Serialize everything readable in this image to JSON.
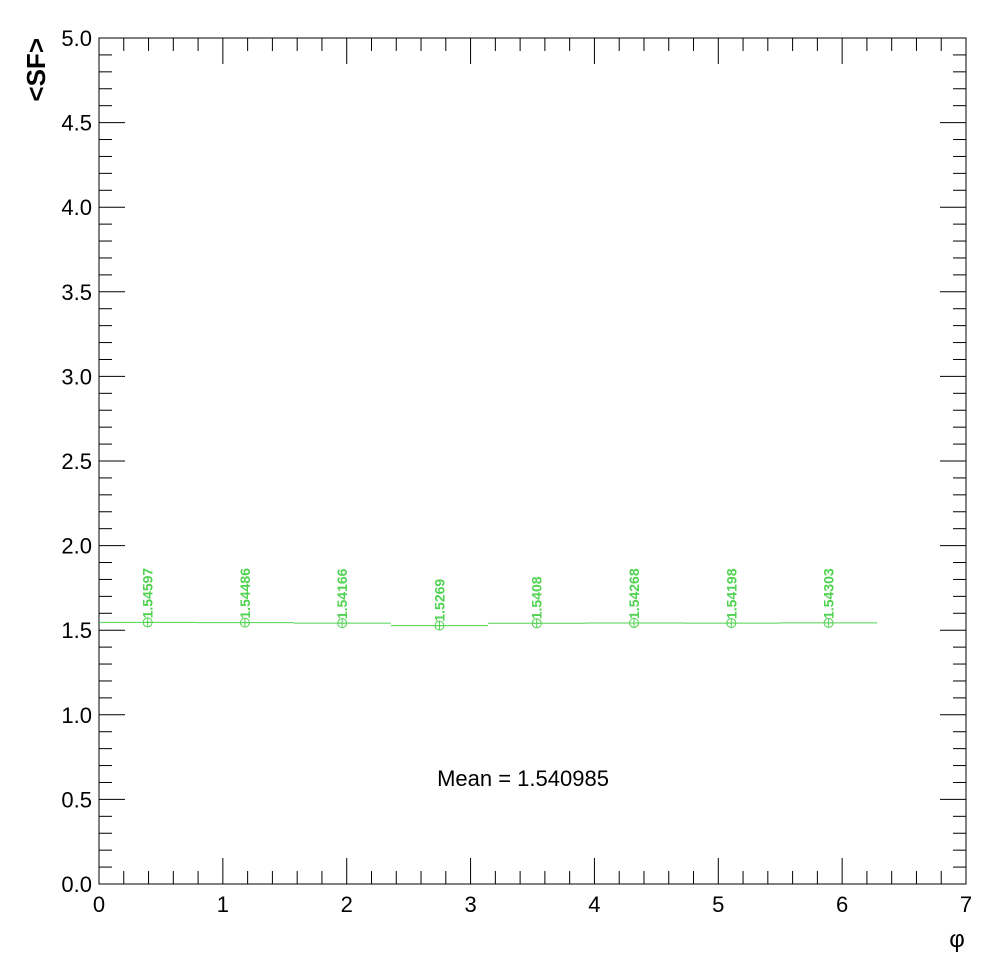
{
  "chart_data": {
    "type": "scatter",
    "title": "",
    "xlabel": "φ",
    "ylabel": "<SF>",
    "xlim": [
      0,
      7
    ],
    "ylim": [
      0,
      5
    ],
    "x_ticks": [
      "0",
      "1",
      "2",
      "3",
      "4",
      "5",
      "6",
      "7"
    ],
    "y_ticks": [
      "0.0",
      "0.5",
      "1.0",
      "1.5",
      "2.0",
      "2.5",
      "3.0",
      "3.5",
      "4.0",
      "4.5",
      "5.0"
    ],
    "color": "#4fd24f",
    "marker": "circle-plus",
    "grid": false,
    "series": [
      {
        "x": [
          0.3927,
          1.1781,
          1.9635,
          2.7489,
          3.5343,
          4.3197,
          5.1051,
          5.8905
        ],
        "x_bin_low": [
          0.0,
          0.7854,
          1.5708,
          2.3562,
          3.1416,
          3.927,
          4.7124,
          5.4978
        ],
        "x_bin_high": [
          0.7854,
          1.5708,
          2.3562,
          3.1416,
          3.927,
          4.7124,
          5.4978,
          6.2832
        ],
        "values": [
          1.54597,
          1.54486,
          1.54166,
          1.5269,
          1.5408,
          1.54268,
          1.54198,
          1.54303
        ],
        "labels": [
          "1.54597",
          "1.54486",
          "1.54166",
          "1.5269",
          "1.5408",
          "1.54268",
          "1.54198",
          "1.54303"
        ]
      }
    ],
    "annotation": "Mean = 1.540985"
  }
}
